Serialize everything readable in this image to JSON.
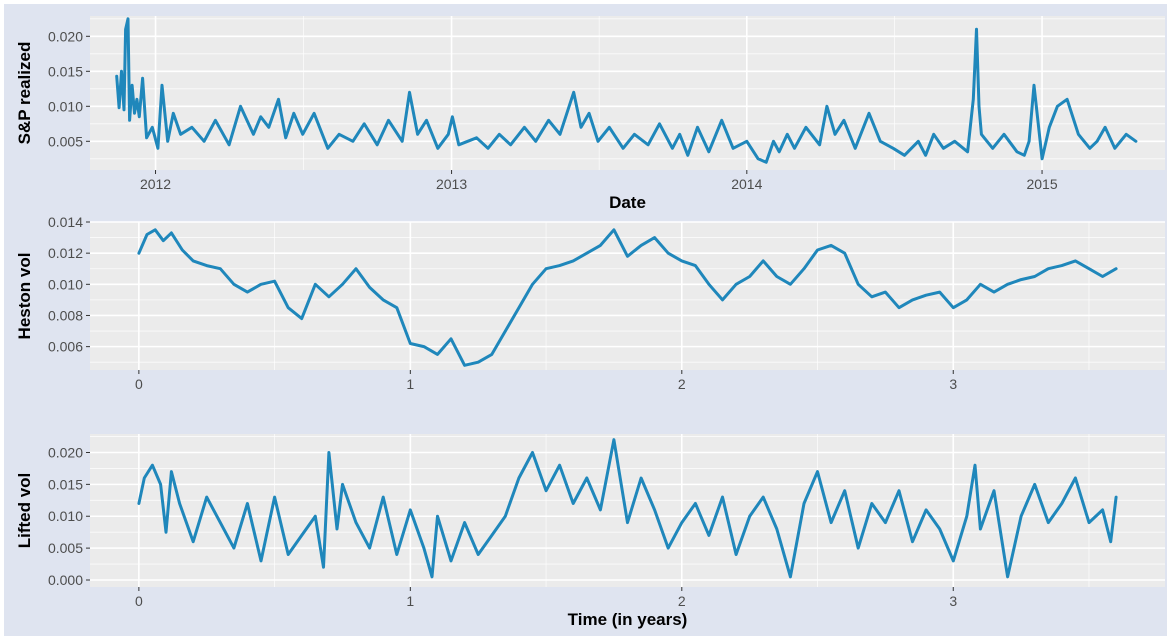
{
  "theme": {
    "outer_bg": "#dfe4f0",
    "panel_bg": "#ebebeb",
    "grid_major": "#ffffff",
    "line_color": "#1f87bb",
    "text_color": "#4d4d4d",
    "label_color": "#000000"
  },
  "chart_data": [
    {
      "type": "line",
      "title": "",
      "xlabel": "Date",
      "ylabel": "S&P realized",
      "x_axis": "date",
      "xlim": [
        "2011-10-12",
        "2015-06-02"
      ],
      "ylim": [
        0.0009,
        0.0229
      ],
      "x_ticks": [
        "2012-01-01",
        "2013-01-01",
        "2014-01-01",
        "2015-01-01"
      ],
      "x_tick_labels": [
        "2012",
        "2013",
        "2014",
        "2015"
      ],
      "y_ticks": [
        0.005,
        0.01,
        0.015,
        0.02
      ],
      "y_tick_labels": [
        "0.005",
        "0.010",
        "0.015",
        "0.020"
      ],
      "grid": true,
      "series": [
        {
          "color": "#1f87bb",
          "x": [
            "2011-11-14",
            "2011-11-17",
            "2011-11-20",
            "2011-11-23",
            "2011-11-25",
            "2011-11-28",
            "2011-11-30",
            "2011-12-03",
            "2011-12-06",
            "2011-12-09",
            "2011-12-12",
            "2011-12-16",
            "2011-12-21",
            "2011-12-28",
            "2012-01-04",
            "2012-01-09",
            "2012-01-16",
            "2012-01-23",
            "2012-02-01",
            "2012-02-15",
            "2012-03-01",
            "2012-03-15",
            "2012-04-01",
            "2012-04-15",
            "2012-05-01",
            "2012-05-10",
            "2012-05-20",
            "2012-06-01",
            "2012-06-10",
            "2012-06-20",
            "2012-07-01",
            "2012-07-15",
            "2012-08-01",
            "2012-08-15",
            "2012-09-01",
            "2012-09-15",
            "2012-10-01",
            "2012-10-15",
            "2012-11-01",
            "2012-11-10",
            "2012-11-20",
            "2012-12-01",
            "2012-12-15",
            "2012-12-28",
            "2013-01-02",
            "2013-01-10",
            "2013-02-01",
            "2013-02-15",
            "2013-03-01",
            "2013-03-15",
            "2013-04-01",
            "2013-04-15",
            "2013-05-01",
            "2013-05-15",
            "2013-06-01",
            "2013-06-10",
            "2013-06-20",
            "2013-07-01",
            "2013-07-15",
            "2013-08-01",
            "2013-08-15",
            "2013-09-01",
            "2013-09-15",
            "2013-10-01",
            "2013-10-10",
            "2013-10-20",
            "2013-11-01",
            "2013-11-15",
            "2013-12-01",
            "2013-12-15",
            "2014-01-01",
            "2014-01-15",
            "2014-01-25",
            "2014-02-03",
            "2014-02-10",
            "2014-02-20",
            "2014-03-01",
            "2014-03-15",
            "2014-04-01",
            "2014-04-10",
            "2014-04-20",
            "2014-05-01",
            "2014-05-15",
            "2014-06-01",
            "2014-06-15",
            "2014-07-01",
            "2014-07-15",
            "2014-08-01",
            "2014-08-10",
            "2014-08-20",
            "2014-09-01",
            "2014-09-15",
            "2014-10-01",
            "2014-10-08",
            "2014-10-12",
            "2014-10-15",
            "2014-10-18",
            "2014-10-25",
            "2014-11-01",
            "2014-11-15",
            "2014-12-01",
            "2014-12-10",
            "2014-12-16",
            "2014-12-22",
            "2015-01-01",
            "2015-01-10",
            "2015-01-20",
            "2015-02-01",
            "2015-02-15",
            "2015-03-01",
            "2015-03-10",
            "2015-03-20",
            "2015-04-01",
            "2015-04-15",
            "2015-04-27"
          ],
          "y": [
            0.0143,
            0.0098,
            0.015,
            0.0095,
            0.021,
            0.0225,
            0.008,
            0.013,
            0.009,
            0.011,
            0.0085,
            0.014,
            0.0055,
            0.007,
            0.004,
            0.013,
            0.005,
            0.009,
            0.006,
            0.007,
            0.005,
            0.008,
            0.0045,
            0.01,
            0.006,
            0.0085,
            0.007,
            0.011,
            0.0055,
            0.009,
            0.006,
            0.009,
            0.004,
            0.006,
            0.005,
            0.0075,
            0.0045,
            0.008,
            0.005,
            0.012,
            0.006,
            0.008,
            0.004,
            0.006,
            0.0085,
            0.0045,
            0.0055,
            0.004,
            0.006,
            0.0045,
            0.007,
            0.005,
            0.008,
            0.006,
            0.012,
            0.007,
            0.009,
            0.005,
            0.007,
            0.004,
            0.006,
            0.0045,
            0.0075,
            0.004,
            0.006,
            0.003,
            0.007,
            0.0035,
            0.008,
            0.004,
            0.005,
            0.0025,
            0.002,
            0.005,
            0.0035,
            0.006,
            0.004,
            0.007,
            0.0045,
            0.01,
            0.006,
            0.008,
            0.004,
            0.009,
            0.005,
            0.004,
            0.003,
            0.005,
            0.003,
            0.006,
            0.004,
            0.005,
            0.0035,
            0.011,
            0.021,
            0.01,
            0.006,
            0.005,
            0.004,
            0.006,
            0.0035,
            0.003,
            0.005,
            0.013,
            0.0025,
            0.007,
            0.01,
            0.011,
            0.006,
            0.004,
            0.005,
            0.007,
            0.004,
            0.006,
            0.005
          ]
        }
      ]
    },
    {
      "type": "line",
      "title": "",
      "xlabel": "",
      "ylabel": "Heston vol",
      "xlim": [
        -0.18,
        3.78
      ],
      "ylim": [
        0.0045,
        0.014
      ],
      "x_ticks": [
        0,
        1,
        2,
        3
      ],
      "x_tick_labels": [
        "0",
        "1",
        "2",
        "3"
      ],
      "y_ticks": [
        0.006,
        0.008,
        0.01,
        0.012,
        0.014
      ],
      "y_tick_labels": [
        "0.006",
        "0.008",
        "0.010",
        "0.012",
        "0.014"
      ],
      "grid": true,
      "series": [
        {
          "color": "#1f87bb",
          "x": [
            0,
            0.03,
            0.06,
            0.09,
            0.12,
            0.16,
            0.2,
            0.25,
            0.3,
            0.35,
            0.4,
            0.45,
            0.5,
            0.55,
            0.6,
            0.65,
            0.7,
            0.75,
            0.8,
            0.85,
            0.9,
            0.95,
            1.0,
            1.05,
            1.1,
            1.15,
            1.2,
            1.25,
            1.3,
            1.35,
            1.4,
            1.45,
            1.5,
            1.55,
            1.6,
            1.65,
            1.7,
            1.75,
            1.8,
            1.85,
            1.9,
            1.95,
            2.0,
            2.05,
            2.1,
            2.15,
            2.2,
            2.25,
            2.3,
            2.35,
            2.4,
            2.45,
            2.5,
            2.55,
            2.6,
            2.65,
            2.7,
            2.75,
            2.8,
            2.85,
            2.9,
            2.95,
            3.0,
            3.05,
            3.1,
            3.15,
            3.2,
            3.25,
            3.3,
            3.35,
            3.4,
            3.45,
            3.5,
            3.55,
            3.6
          ],
          "y": [
            0.012,
            0.0132,
            0.0135,
            0.0128,
            0.0133,
            0.0122,
            0.0115,
            0.0112,
            0.011,
            0.01,
            0.0095,
            0.01,
            0.0102,
            0.0085,
            0.0078,
            0.01,
            0.0092,
            0.01,
            0.011,
            0.0098,
            0.009,
            0.0085,
            0.0062,
            0.006,
            0.0055,
            0.0065,
            0.0048,
            0.005,
            0.0055,
            0.007,
            0.0085,
            0.01,
            0.011,
            0.0112,
            0.0115,
            0.012,
            0.0125,
            0.0135,
            0.0118,
            0.0125,
            0.013,
            0.012,
            0.0115,
            0.0112,
            0.01,
            0.009,
            0.01,
            0.0105,
            0.0115,
            0.0105,
            0.01,
            0.011,
            0.0122,
            0.0125,
            0.012,
            0.01,
            0.0092,
            0.0095,
            0.0085,
            0.009,
            0.0093,
            0.0095,
            0.0085,
            0.009,
            0.01,
            0.0095,
            0.01,
            0.0103,
            0.0105,
            0.011,
            0.0112,
            0.0115,
            0.011,
            0.0105,
            0.011
          ]
        }
      ]
    },
    {
      "type": "line",
      "title": "",
      "xlabel": "Time (in years)",
      "ylabel": "Lifted vol",
      "xlim": [
        -0.18,
        3.78
      ],
      "ylim": [
        -0.0011,
        0.0229
      ],
      "x_ticks": [
        0,
        1,
        2,
        3
      ],
      "x_tick_labels": [
        "0",
        "1",
        "2",
        "3"
      ],
      "y_ticks": [
        0,
        0.005,
        0.01,
        0.015,
        0.02
      ],
      "y_tick_labels": [
        "0.000",
        "0.005",
        "0.010",
        "0.015",
        "0.020"
      ],
      "grid": true,
      "series": [
        {
          "color": "#1f87bb",
          "x": [
            0,
            0.02,
            0.05,
            0.08,
            0.1,
            0.12,
            0.15,
            0.2,
            0.25,
            0.3,
            0.35,
            0.4,
            0.45,
            0.5,
            0.55,
            0.6,
            0.65,
            0.68,
            0.7,
            0.73,
            0.75,
            0.8,
            0.85,
            0.9,
            0.95,
            1.0,
            1.05,
            1.08,
            1.1,
            1.15,
            1.2,
            1.25,
            1.3,
            1.35,
            1.4,
            1.45,
            1.5,
            1.55,
            1.6,
            1.65,
            1.7,
            1.75,
            1.8,
            1.85,
            1.9,
            1.95,
            2.0,
            2.05,
            2.1,
            2.15,
            2.2,
            2.25,
            2.3,
            2.35,
            2.4,
            2.45,
            2.5,
            2.55,
            2.6,
            2.65,
            2.7,
            2.75,
            2.8,
            2.85,
            2.9,
            2.95,
            3.0,
            3.05,
            3.08,
            3.1,
            3.15,
            3.2,
            3.25,
            3.3,
            3.35,
            3.4,
            3.45,
            3.5,
            3.55,
            3.58,
            3.6
          ],
          "y": [
            0.012,
            0.016,
            0.018,
            0.015,
            0.0075,
            0.017,
            0.012,
            0.006,
            0.013,
            0.009,
            0.005,
            0.012,
            0.003,
            0.013,
            0.004,
            0.007,
            0.01,
            0.002,
            0.02,
            0.008,
            0.015,
            0.009,
            0.005,
            0.013,
            0.004,
            0.011,
            0.005,
            0.0005,
            0.01,
            0.003,
            0.009,
            0.004,
            0.007,
            0.01,
            0.016,
            0.02,
            0.014,
            0.018,
            0.012,
            0.016,
            0.011,
            0.022,
            0.009,
            0.016,
            0.011,
            0.005,
            0.009,
            0.012,
            0.007,
            0.013,
            0.004,
            0.01,
            0.013,
            0.008,
            0.0005,
            0.012,
            0.017,
            0.009,
            0.014,
            0.005,
            0.012,
            0.009,
            0.014,
            0.006,
            0.011,
            0.008,
            0.003,
            0.01,
            0.018,
            0.008,
            0.014,
            0.0005,
            0.01,
            0.015,
            0.009,
            0.012,
            0.016,
            0.009,
            0.011,
            0.006,
            0.013
          ]
        }
      ]
    }
  ]
}
